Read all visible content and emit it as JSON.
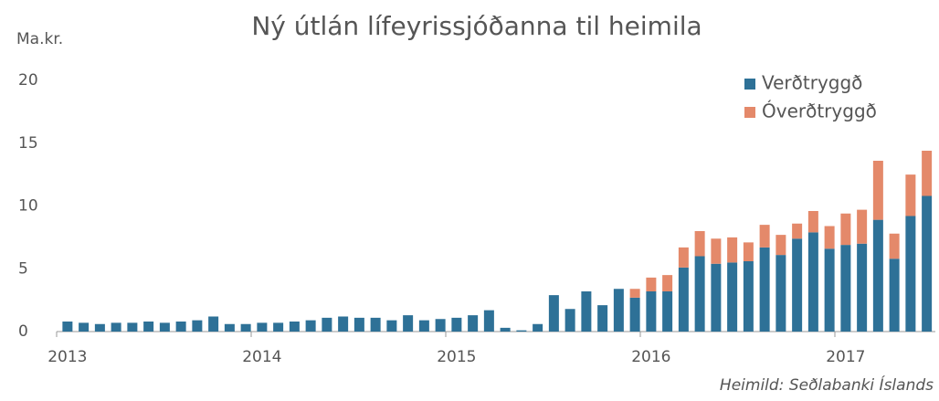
{
  "chart_data": {
    "type": "stacked_bar",
    "title": "Ný útlán lífeyrissjóðanna til heimila",
    "y_label": "Ma.kr.",
    "source": "Heimild: Seðlabanki Íslands",
    "categories": [
      "2013",
      null,
      null,
      null,
      null,
      null,
      null,
      null,
      null,
      null,
      null,
      null,
      "2014",
      null,
      null,
      null,
      null,
      null,
      null,
      null,
      null,
      null,
      null,
      null,
      "2015",
      null,
      null,
      null,
      null,
      null,
      null,
      null,
      null,
      null,
      null,
      null,
      "2016",
      null,
      null,
      null,
      null,
      null,
      null,
      null,
      null,
      null,
      null,
      null,
      "2017",
      null,
      null,
      null,
      null,
      null
    ],
    "series": [
      {
        "name": "Verðtryggð",
        "color": "#2e7197",
        "values": [
          0.8,
          0.7,
          0.6,
          0.7,
          0.7,
          0.8,
          0.7,
          0.8,
          0.9,
          1.2,
          0.6,
          0.6,
          0.7,
          0.7,
          0.8,
          0.9,
          1.1,
          1.2,
          1.1,
          1.1,
          0.9,
          1.3,
          0.9,
          1.0,
          1.1,
          1.3,
          1.7,
          0.3,
          0.1,
          0.6,
          2.9,
          1.8,
          3.2,
          2.1,
          3.4,
          2.7,
          3.2,
          3.2,
          5.1,
          6.0,
          5.4,
          5.5,
          5.6,
          6.7,
          6.1,
          7.4,
          7.9,
          6.6,
          6.9,
          7.0,
          8.9,
          5.8,
          9.2,
          10.8
        ]
      },
      {
        "name": "Óverðtryggð",
        "color": "#e4896a",
        "values": [
          0,
          0,
          0,
          0,
          0,
          0,
          0,
          0,
          0,
          0,
          0,
          0,
          0,
          0,
          0,
          0,
          0,
          0,
          0,
          0,
          0,
          0,
          0,
          0,
          0,
          0,
          0,
          0,
          0,
          0,
          0,
          0,
          0,
          0,
          0,
          0.7,
          1.1,
          1.3,
          1.6,
          2.0,
          2.0,
          2.0,
          1.5,
          1.8,
          1.6,
          1.2,
          1.7,
          1.8,
          2.5,
          2.7,
          4.7,
          2.0,
          3.3,
          3.6
        ]
      }
    ],
    "ylim": [
      0,
      20
    ],
    "yticks": [
      0,
      5,
      10,
      15,
      20
    ],
    "grid": false,
    "legend": "top-right"
  }
}
